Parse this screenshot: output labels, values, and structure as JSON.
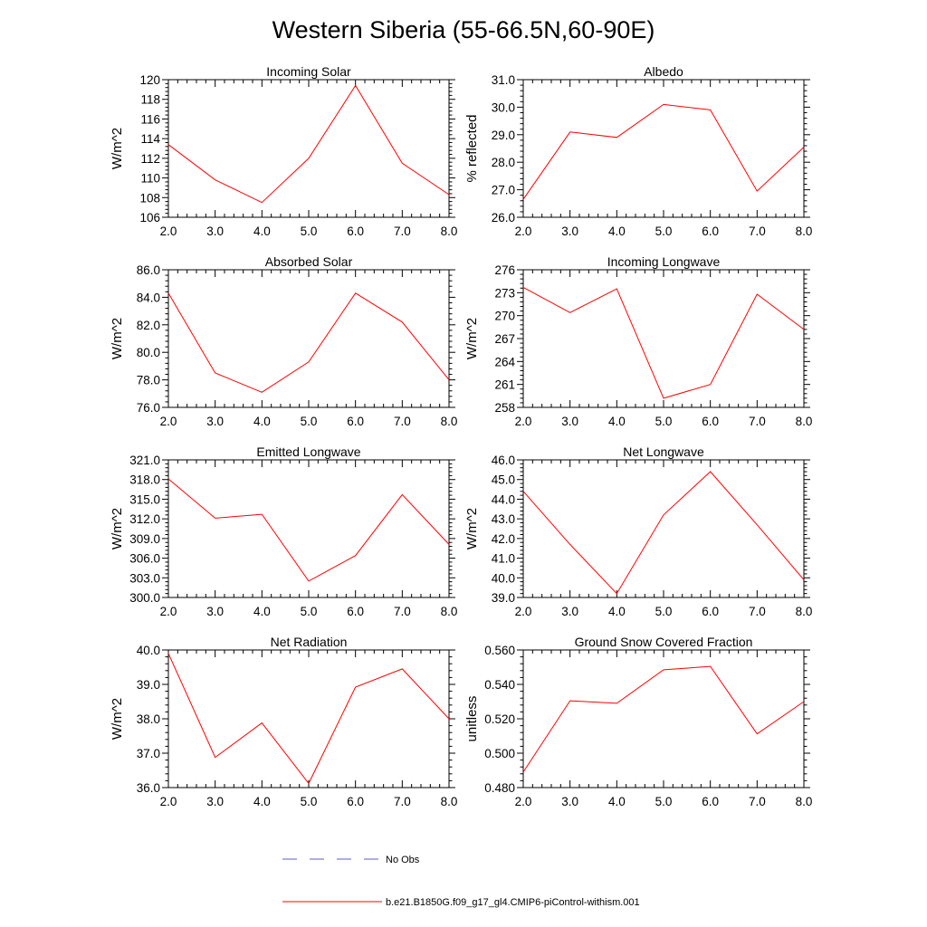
{
  "page_title": "Western Siberia (55-66.5N,60-90E)",
  "legend": {
    "obs_label": "No Obs",
    "obs_color": "#5c5cc8",
    "model_label": "b.e21.B1850G.f09_g17_gl4.CMIP6-piControl-withism.001",
    "model_color": "#ff0000"
  },
  "chart_data": [
    {
      "type": "line",
      "title": "Incoming Solar",
      "ylabel": "W/m^2",
      "xlim": [
        2,
        8
      ],
      "ylim": [
        106,
        120
      ],
      "x_ticks": [
        2,
        3,
        4,
        5,
        6,
        7,
        8
      ],
      "x_tick_labels": [
        "2.0",
        "3.0",
        "4.0",
        "5.0",
        "6.0",
        "7.0",
        "8.0"
      ],
      "y_ticks": [
        106,
        108,
        110,
        112,
        114,
        116,
        118,
        120
      ],
      "y_tick_labels": [
        "106",
        "108",
        "110",
        "112",
        "114",
        "116",
        "118",
        "120"
      ],
      "series": [
        {
          "name": "b.e21.B1850G.f09_g17_gl4.CMIP6-piControl-withism.001",
          "color": "#ff0000",
          "x": [
            2,
            3,
            4,
            5,
            6,
            7,
            8
          ],
          "y": [
            113.4,
            109.8,
            107.5,
            112.0,
            119.4,
            111.5,
            108.3
          ]
        }
      ]
    },
    {
      "type": "line",
      "title": "Albedo",
      "ylabel": "% reflected",
      "xlim": [
        2,
        8
      ],
      "ylim": [
        26,
        31
      ],
      "x_ticks": [
        2,
        3,
        4,
        5,
        6,
        7,
        8
      ],
      "x_tick_labels": [
        "2.0",
        "3.0",
        "4.0",
        "5.0",
        "6.0",
        "7.0",
        "8.0"
      ],
      "y_ticks": [
        26,
        27,
        28,
        29,
        30,
        31
      ],
      "y_tick_labels": [
        "26.0",
        "27.0",
        "28.0",
        "29.0",
        "30.0",
        "31.0"
      ],
      "series": [
        {
          "name": "b.e21.B1850G.f09_g17_gl4.CMIP6-piControl-withism.001",
          "color": "#ff0000",
          "x": [
            2,
            3,
            4,
            5,
            6,
            7,
            8
          ],
          "y": [
            26.65,
            29.1,
            28.9,
            30.1,
            29.9,
            26.95,
            28.55
          ]
        }
      ]
    },
    {
      "type": "line",
      "title": "Absorbed Solar",
      "ylabel": "W/m^2",
      "xlim": [
        2,
        8
      ],
      "ylim": [
        76,
        86
      ],
      "x_ticks": [
        2,
        3,
        4,
        5,
        6,
        7,
        8
      ],
      "x_tick_labels": [
        "2.0",
        "3.0",
        "4.0",
        "5.0",
        "6.0",
        "7.0",
        "8.0"
      ],
      "y_ticks": [
        76,
        78,
        80,
        82,
        84,
        86
      ],
      "y_tick_labels": [
        "76.0",
        "78.0",
        "80.0",
        "82.0",
        "84.0",
        "86.0"
      ],
      "series": [
        {
          "name": "b.e21.B1850G.f09_g17_gl4.CMIP6-piControl-withism.001",
          "color": "#ff0000",
          "x": [
            2,
            3,
            4,
            5,
            6,
            7,
            8
          ],
          "y": [
            84.3,
            78.5,
            77.1,
            79.3,
            84.3,
            82.2,
            78.0
          ]
        }
      ]
    },
    {
      "type": "line",
      "title": "Incoming Longwave",
      "ylabel": "W/m^2",
      "xlim": [
        2,
        8
      ],
      "ylim": [
        258,
        276
      ],
      "x_ticks": [
        2,
        3,
        4,
        5,
        6,
        7,
        8
      ],
      "x_tick_labels": [
        "2.0",
        "3.0",
        "4.0",
        "5.0",
        "6.0",
        "7.0",
        "8.0"
      ],
      "y_ticks": [
        258,
        261,
        264,
        267,
        270,
        273,
        276
      ],
      "y_tick_labels": [
        "258",
        "261",
        "264",
        "267",
        "270",
        "273",
        "276"
      ],
      "series": [
        {
          "name": "b.e21.B1850G.f09_g17_gl4.CMIP6-piControl-withism.001",
          "color": "#ff0000",
          "x": [
            2,
            3,
            4,
            5,
            6,
            7,
            8
          ],
          "y": [
            273.7,
            270.4,
            273.5,
            259.2,
            261.0,
            272.8,
            268.2
          ]
        }
      ]
    },
    {
      "type": "line",
      "title": "Emitted Longwave",
      "ylabel": "W/m^2",
      "xlim": [
        2,
        8
      ],
      "ylim": [
        300,
        321
      ],
      "x_ticks": [
        2,
        3,
        4,
        5,
        6,
        7,
        8
      ],
      "x_tick_labels": [
        "2.0",
        "3.0",
        "4.0",
        "5.0",
        "6.0",
        "7.0",
        "8.0"
      ],
      "y_ticks": [
        300,
        303,
        306,
        309,
        312,
        315,
        318,
        321
      ],
      "y_tick_labels": [
        "300.0",
        "303.0",
        "306.0",
        "309.0",
        "312.0",
        "315.0",
        "318.0",
        "321.0"
      ],
      "series": [
        {
          "name": "b.e21.B1850G.f09_g17_gl4.CMIP6-piControl-withism.001",
          "color": "#ff0000",
          "x": [
            2,
            3,
            4,
            5,
            6,
            7,
            8
          ],
          "y": [
            318.1,
            312.1,
            312.7,
            302.5,
            306.4,
            315.7,
            308.1
          ]
        }
      ]
    },
    {
      "type": "line",
      "title": "Net Longwave",
      "ylabel": "W/m^2",
      "xlim": [
        2,
        8
      ],
      "ylim": [
        39,
        46
      ],
      "x_ticks": [
        2,
        3,
        4,
        5,
        6,
        7,
        8
      ],
      "x_tick_labels": [
        "2.0",
        "3.0",
        "4.0",
        "5.0",
        "6.0",
        "7.0",
        "8.0"
      ],
      "y_ticks": [
        39,
        40,
        41,
        42,
        43,
        44,
        45,
        46
      ],
      "y_tick_labels": [
        "39.0",
        "40.0",
        "41.0",
        "42.0",
        "43.0",
        "44.0",
        "45.0",
        "46.0"
      ],
      "series": [
        {
          "name": "b.e21.B1850G.f09_g17_gl4.CMIP6-piControl-withism.001",
          "color": "#ff0000",
          "x": [
            2,
            3,
            4,
            5,
            6,
            7,
            8
          ],
          "y": [
            44.4,
            41.7,
            39.2,
            43.2,
            45.4,
            42.7,
            39.9
          ]
        }
      ]
    },
    {
      "type": "line",
      "title": "Net Radiation",
      "ylabel": "W/m^2",
      "xlim": [
        2,
        8
      ],
      "ylim": [
        36,
        40
      ],
      "x_ticks": [
        2,
        3,
        4,
        5,
        6,
        7,
        8
      ],
      "x_tick_labels": [
        "2.0",
        "3.0",
        "4.0",
        "5.0",
        "6.0",
        "7.0",
        "8.0"
      ],
      "y_ticks": [
        36,
        37,
        38,
        39,
        40
      ],
      "y_tick_labels": [
        "36.0",
        "37.0",
        "38.0",
        "39.0",
        "40.0"
      ],
      "series": [
        {
          "name": "b.e21.B1850G.f09_g17_gl4.CMIP6-piControl-withism.001",
          "color": "#ff0000",
          "x": [
            2,
            3,
            4,
            5,
            6,
            7,
            8
          ],
          "y": [
            39.9,
            36.88,
            37.88,
            36.12,
            38.92,
            39.45,
            38.0
          ]
        }
      ]
    },
    {
      "type": "line",
      "title": "Ground Snow Covered Fraction",
      "ylabel": "unitless",
      "xlim": [
        2,
        8
      ],
      "ylim": [
        0.48,
        0.56
      ],
      "x_ticks": [
        2,
        3,
        4,
        5,
        6,
        7,
        8
      ],
      "x_tick_labels": [
        "2.0",
        "3.0",
        "4.0",
        "5.0",
        "6.0",
        "7.0",
        "8.0"
      ],
      "y_ticks": [
        0.48,
        0.5,
        0.52,
        0.54,
        0.56
      ],
      "y_tick_labels": [
        "0.480",
        "0.500",
        "0.520",
        "0.540",
        "0.560"
      ],
      "series": [
        {
          "name": "b.e21.B1850G.f09_g17_gl4.CMIP6-piControl-withism.001",
          "color": "#ff0000",
          "x": [
            2,
            3,
            4,
            5,
            6,
            7,
            8
          ],
          "y": [
            0.489,
            0.5305,
            0.529,
            0.5485,
            0.5505,
            0.5112,
            0.53
          ]
        }
      ]
    }
  ]
}
